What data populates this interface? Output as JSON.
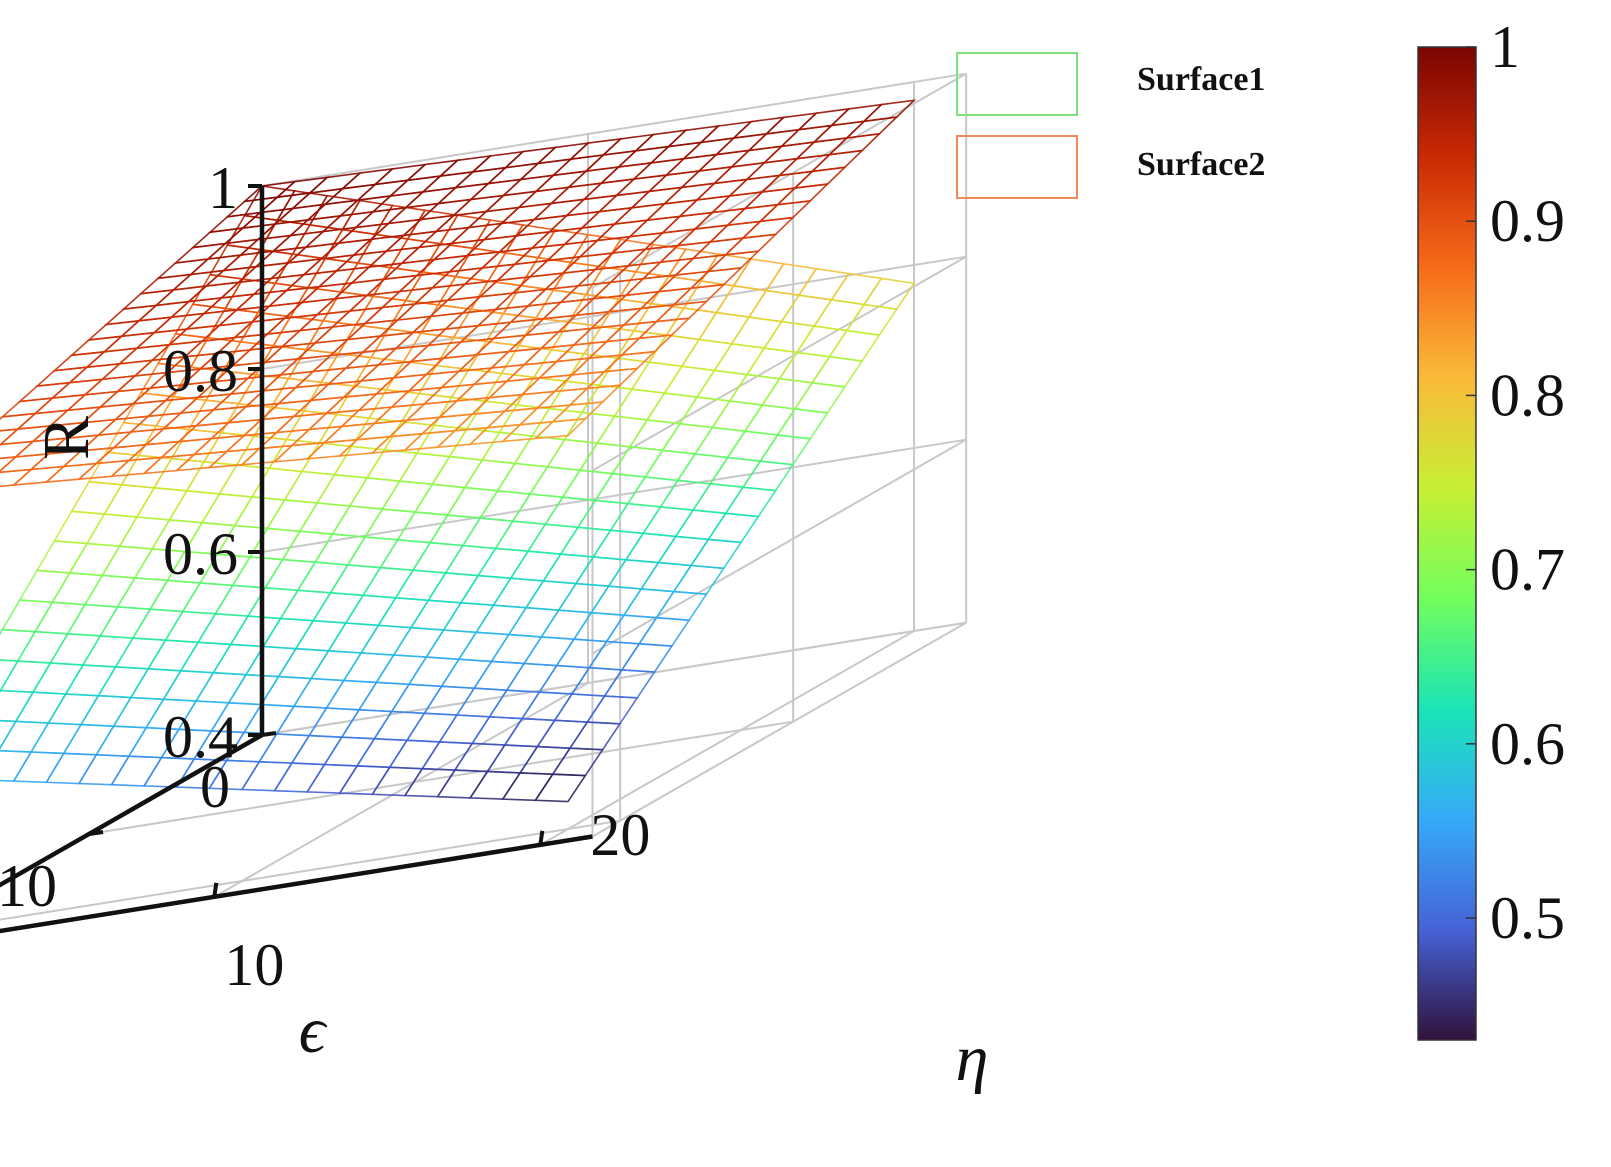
{
  "chart_data": {
    "type": "surface",
    "axes": {
      "x": {
        "label": "η",
        "ticks": [
          0,
          10,
          20
        ],
        "range": [
          0,
          20
        ]
      },
      "y": {
        "label": "ϵ",
        "ticks": [
          0,
          10,
          20
        ],
        "range": [
          0,
          20
        ]
      },
      "z": {
        "label": "R",
        "ticks": [
          0.4,
          0.6,
          0.8,
          1
        ],
        "range": [
          0.4,
          1.0
        ]
      }
    },
    "grid": true,
    "legend": {
      "placement": "top-right",
      "entries": [
        {
          "name": "Surface1",
          "color": "#7fe07f"
        },
        {
          "name": "Surface2",
          "color": "#f08a5a"
        }
      ]
    },
    "colorbar": {
      "ticks": [
        0.5,
        0.6,
        0.7,
        0.8,
        0.9,
        1
      ],
      "range": [
        0.43,
        1.0
      ],
      "colormap": [
        "#30123b",
        "#4662d7",
        "#36aaf9",
        "#1ae4b6",
        "#72fe5e",
        "#c7ef34",
        "#faba39",
        "#f66b19",
        "#ca2a04",
        "#7a0403"
      ]
    },
    "series": [
      {
        "name": "Surface1",
        "mesh": 20,
        "corners": {
          "eta0_eps0": 1.0,
          "eta20_eps0": 0.78,
          "eta0_eps20": 0.57,
          "eta20_eps20": 0.43
        }
      },
      {
        "name": "Surface2",
        "mesh": 20,
        "corners": {
          "eta0_eps0": 1.0,
          "eta20_eps0": 0.98,
          "eta0_eps20": 0.88,
          "eta20_eps20": 0.83
        }
      }
    ]
  }
}
